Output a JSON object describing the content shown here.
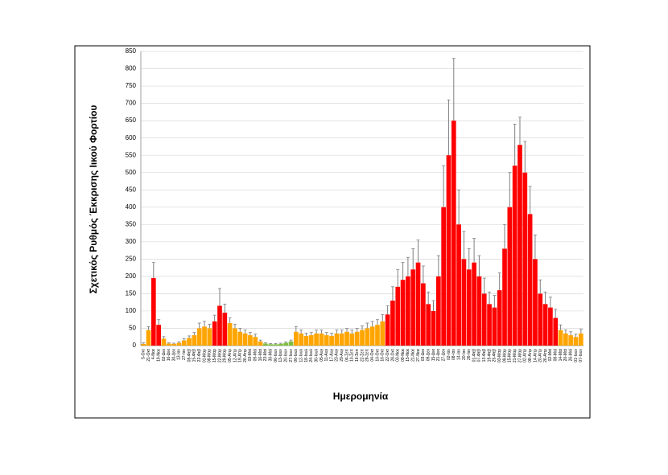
{
  "chart_data": {
    "type": "bar",
    "y_label": "Σχετικός Ρυθμός Έκκρισης Ιικού Φορτίου",
    "x_label": "Ημερομηνία",
    "categories": [
      "5-Οκτ",
      "21-Οκτ",
      "4-Νοε",
      "19-Νοε",
      "02-Δεκ",
      "16-Δεκ",
      "30-Δεκ",
      "13-Ιαν",
      "27-Ιαν",
      "08-Φεβ",
      "15-Φεβ",
      "22-Φεβ",
      "01-Μαρ",
      "08-Μαρ",
      "15-Μαρ",
      "22-Μαρ",
      "29-Μαρ",
      "05-Απρ",
      "12-Απρ",
      "19-Απρ",
      "26-Απρ",
      "03-Μαϊ",
      "09-Μαϊ",
      "16-Μαϊ",
      "23-Μαϊ",
      "30-Μαϊ",
      "06-Ιουν",
      "13-Ιουν",
      "20-Ιουν",
      "27-Ιουν",
      "06-Ιουλ",
      "12-Ιουλ",
      "18-Ιουλ",
      "24-Ιουλ",
      "30-Ιουλ",
      "05-Αυγ",
      "11-Αυγ",
      "17-Αυγ",
      "23-Αυγ",
      "29-Αυγ",
      "04-Σεπ",
      "10-Σεπ",
      "16-Σεπ",
      "22-Σεπ",
      "28-Σεπ",
      "04-Οκτ",
      "10-Οκτ",
      "16-Οκτ",
      "22-Οκτ",
      "28-Οκτ",
      "03-Νοε",
      "09-Νοε",
      "15-Νοε",
      "21-Νοε",
      "27-Νοε",
      "03-Δεκ",
      "09-Δεκ",
      "15-Δεκ",
      "21-Δεκ",
      "27-Δεκ",
      "02-Ιαν",
      "08-Ιαν",
      "14-Ιαν",
      "20-Ιαν",
      "26-Ιαν",
      "01-Φεβ",
      "07-Φεβ",
      "13-Φεβ",
      "19-Φεβ",
      "25-Φεβ",
      "03-Μαρ",
      "09-Μαρ",
      "15-Μαρ",
      "21-Μαρ",
      "27-Μαρ",
      "02-Απρ",
      "08-Απρ",
      "14-Απρ",
      "20-Απρ",
      "26-Απρ",
      "02-Μαϊ",
      "08-Μαϊ",
      "14-Μαϊ",
      "20-Μαϊ",
      "26-Μαϊ",
      "01-Ιουν",
      "07-Ιουν"
    ],
    "values": [
      5,
      45,
      195,
      60,
      20,
      6,
      5,
      8,
      15,
      22,
      30,
      50,
      55,
      50,
      70,
      115,
      95,
      65,
      50,
      40,
      35,
      30,
      25,
      12,
      6,
      4,
      4,
      5,
      8,
      12,
      40,
      35,
      28,
      30,
      35,
      35,
      30,
      28,
      35,
      35,
      40,
      35,
      40,
      45,
      50,
      55,
      60,
      70,
      90,
      130,
      170,
      190,
      200,
      220,
      240,
      180,
      120,
      100,
      200,
      400,
      550,
      650,
      350,
      250,
      220,
      240,
      200,
      150,
      120,
      110,
      160,
      280,
      400,
      520,
      580,
      500,
      380,
      250,
      150,
      120,
      110,
      80,
      45,
      35,
      30,
      25,
      35
    ],
    "errors": [
      3,
      10,
      45,
      15,
      6,
      2,
      2,
      3,
      5,
      6,
      8,
      15,
      15,
      12,
      18,
      50,
      25,
      15,
      12,
      10,
      10,
      8,
      8,
      4,
      2,
      2,
      2,
      2,
      3,
      4,
      15,
      10,
      8,
      8,
      10,
      10,
      8,
      8,
      10,
      10,
      10,
      10,
      10,
      12,
      15,
      15,
      15,
      20,
      25,
      40,
      50,
      50,
      55,
      60,
      65,
      50,
      35,
      30,
      60,
      120,
      160,
      180,
      100,
      80,
      60,
      70,
      60,
      45,
      35,
      35,
      50,
      70,
      100,
      120,
      80,
      90,
      80,
      70,
      40,
      35,
      30,
      25,
      15,
      10,
      10,
      8,
      12
    ],
    "colors": [
      "#ffa500",
      "#ffa500",
      "#ff0000",
      "#ff0000",
      "#ffa500",
      "#ffa500",
      "#ffa500",
      "#ffa500",
      "#ffa500",
      "#ffa500",
      "#ffa500",
      "#ffa500",
      "#ffa500",
      "#ffa500",
      "#ff0000",
      "#ff0000",
      "#ff0000",
      "#ffa500",
      "#ffa500",
      "#ffa500",
      "#ffa500",
      "#ffa500",
      "#ffa500",
      "#ffa500",
      "#7fbf3f",
      "#7fbf3f",
      "#7fbf3f",
      "#7fbf3f",
      "#7fbf3f",
      "#7fbf3f",
      "#ffa500",
      "#ffa500",
      "#ffa500",
      "#ffa500",
      "#ffa500",
      "#ffa500",
      "#ffa500",
      "#ffa500",
      "#ffa500",
      "#ffa500",
      "#ffa500",
      "#ffa500",
      "#ffa500",
      "#ffa500",
      "#ffa500",
      "#ffa500",
      "#ffa500",
      "#ffa500",
      "#ff0000",
      "#ff0000",
      "#ff0000",
      "#ff0000",
      "#ff0000",
      "#ff0000",
      "#ff0000",
      "#ff0000",
      "#ff0000",
      "#ff0000",
      "#ff0000",
      "#ff0000",
      "#ff0000",
      "#ff0000",
      "#ff0000",
      "#ff0000",
      "#ff0000",
      "#ff0000",
      "#ff0000",
      "#ff0000",
      "#ff0000",
      "#ff0000",
      "#ff0000",
      "#ff0000",
      "#ff0000",
      "#ff0000",
      "#ff0000",
      "#ff0000",
      "#ff0000",
      "#ff0000",
      "#ff0000",
      "#ff0000",
      "#ff0000",
      "#ff0000",
      "#ffa500",
      "#ffa500",
      "#ffa500",
      "#ffa500",
      "#ffa500"
    ],
    "error_color": "#808080",
    "ylim": [
      0,
      850
    ],
    "yticks": [
      0,
      50,
      100,
      150,
      200,
      250,
      300,
      350,
      400,
      450,
      500,
      550,
      600,
      650,
      700,
      750,
      800,
      850
    ],
    "grid": true
  }
}
